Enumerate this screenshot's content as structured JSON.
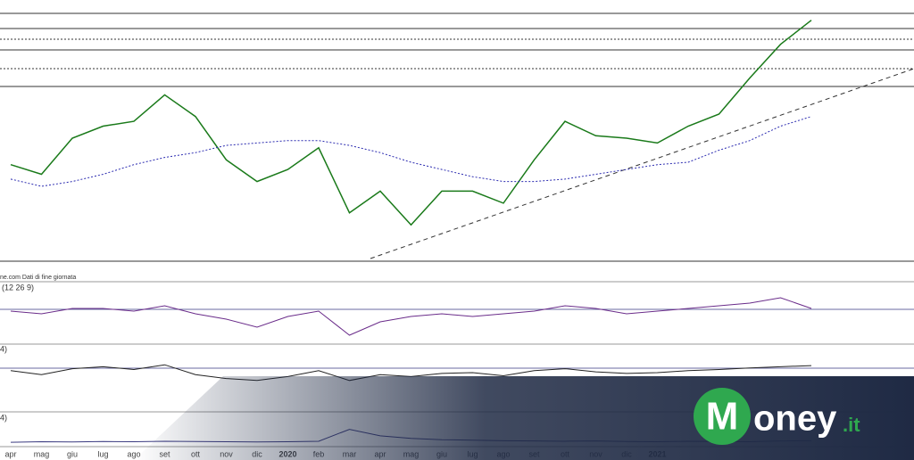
{
  "chart_data": [
    {
      "type": "line",
      "source": "ne.com Dati di fine giornata",
      "categories": [
        "apr",
        "mag",
        "giu",
        "lug",
        "ago",
        "set",
        "ott",
        "nov",
        "dic",
        "2020",
        "feb",
        "mar",
        "apr",
        "mag",
        "giu",
        "lug",
        "ago",
        "set",
        "ott",
        "nov",
        "dic",
        "2021",
        null,
        null,
        null,
        null,
        null
      ],
      "ylim": [
        0,
        100
      ],
      "series": [
        {
          "name": null,
          "color": "#1a7a1a",
          "values": [
            39,
            35,
            50,
            55,
            57,
            68,
            59,
            41,
            32,
            37,
            46,
            19,
            28,
            14,
            28,
            28,
            23,
            41,
            57,
            51,
            50,
            48,
            55,
            60,
            75,
            89,
            99
          ]
        },
        {
          "name": null,
          "color": "#2b2bb0",
          "values": [
            33,
            30,
            32,
            35,
            39,
            42,
            44,
            47,
            48,
            49,
            49,
            47,
            44,
            40,
            37,
            34,
            32,
            32,
            33,
            35,
            37,
            39,
            40,
            45,
            49,
            55,
            59
          ]
        }
      ]
    },
    {
      "type": "line",
      "label": "(12 26 9)",
      "ylim": [
        -10,
        10
      ],
      "series": [
        {
          "name": null,
          "color": "#6a2c8a",
          "values": [
            1,
            0,
            2,
            2,
            1,
            3,
            0,
            -2,
            -5,
            -1,
            1,
            -8,
            -3,
            -1,
            0,
            -1,
            0,
            1,
            3,
            2,
            0,
            1,
            2,
            3,
            4,
            6,
            2
          ]
        }
      ]
    },
    {
      "type": "line",
      "label": "4)",
      "ylim": [
        0,
        100
      ],
      "series": [
        {
          "name": null,
          "color": "#222",
          "values": [
            55,
            45,
            60,
            65,
            58,
            70,
            45,
            35,
            30,
            40,
            55,
            30,
            45,
            40,
            48,
            50,
            42,
            55,
            60,
            52,
            48,
            50,
            55,
            58,
            62,
            65,
            68
          ]
        }
      ]
    },
    {
      "type": "line",
      "label": "4)",
      "ylim": [
        0,
        100
      ],
      "series": [
        {
          "name": null,
          "color": "#3a3a80",
          "values": [
            10,
            12,
            11,
            13,
            12,
            14,
            13,
            12,
            11,
            12,
            14,
            60,
            35,
            25,
            20,
            18,
            16,
            15,
            14,
            15,
            13,
            12,
            14,
            13,
            12,
            15,
            16
          ]
        }
      ]
    }
  ]
}
